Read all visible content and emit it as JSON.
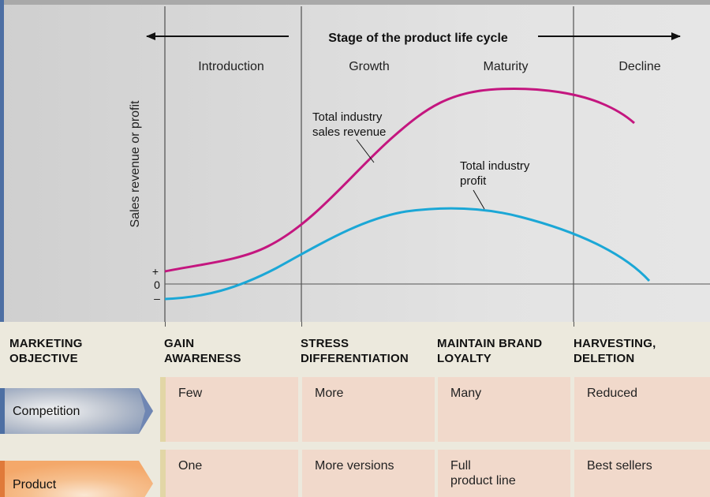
{
  "diagram": {
    "title": "Stage of the product life cycle",
    "stages": [
      "Introduction",
      "Growth",
      "Maturity",
      "Decline"
    ],
    "y_axis_label": "Sales revenue or profit",
    "axis_signs": {
      "plus": "+",
      "zero": "0",
      "minus": "–"
    },
    "curves": [
      {
        "name": "Total industry\nsales revenue",
        "color": "#c4167f"
      },
      {
        "name": "Total industry\nprofit",
        "color": "#1ba7d6"
      }
    ]
  },
  "table": {
    "headers": [
      "MARKETING\nOBJECTIVE",
      "GAIN\nAWARENESS",
      "STRESS\nDIFFERENTIATION",
      "MAINTAIN BRAND\nLOYALTY",
      "HARVESTING,\nDELETION"
    ],
    "rows": [
      {
        "label": "Competition",
        "color": "#8a9bb8",
        "cells": [
          "Few",
          "More",
          "Many",
          "Reduced"
        ]
      },
      {
        "label": "Product",
        "color": "#f4a86a",
        "cells": [
          "One",
          "More versions",
          "Full\nproduct line",
          "Best sellers"
        ]
      }
    ]
  }
}
